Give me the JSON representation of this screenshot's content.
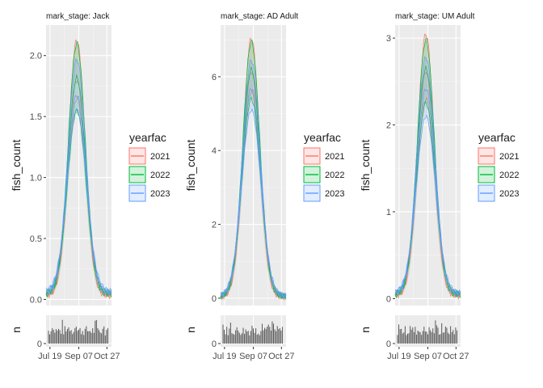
{
  "figure": {
    "legend_title": "yearfac",
    "ylabel": "fish_count",
    "rug_label": "n"
  },
  "chart_data": [
    {
      "type": "area",
      "title": "mark_stage: Jack",
      "xlabel": "",
      "ylabel": "fish_count",
      "x_ticks": [
        "Jul 19",
        "Sep 07",
        "Oct 27"
      ],
      "y_ticks": [
        "0.0",
        "0.5",
        "1.0",
        "1.5",
        "2.0"
      ],
      "ylim": [
        -0.05,
        2.25
      ],
      "rug_ticks": [
        "0"
      ],
      "series": [
        {
          "name": "2021",
          "color": "#F8766D",
          "peak": 2.13,
          "band_low": 1.8,
          "band_high": 2.13,
          "lines": [
            2.13,
            1.8,
            1.65
          ]
        },
        {
          "name": "2022",
          "color": "#00BA38",
          "peak": 2.1,
          "band_low": 1.55,
          "band_high": 2.1,
          "lines": [
            2.1,
            1.82,
            1.55
          ]
        },
        {
          "name": "2023",
          "color": "#619CFF",
          "peak": 1.97,
          "band_low": 1.55,
          "band_high": 1.97,
          "lines": [
            1.97,
            1.68,
            1.55
          ]
        }
      ],
      "grid": true,
      "legend": "right"
    },
    {
      "type": "area",
      "title": "mark_stage: AD Adult",
      "xlabel": "",
      "ylabel": "fish_count",
      "x_ticks": [
        "Jul 19",
        "Sep 07",
        "Oct 27"
      ],
      "y_ticks": [
        "0",
        "2",
        "4",
        "6"
      ],
      "ylim": [
        -0.2,
        7.4
      ],
      "rug_ticks": [
        "0"
      ],
      "series": [
        {
          "name": "2021",
          "color": "#F8766D",
          "peak": 7.05,
          "band_low": 5.6,
          "band_high": 7.05,
          "lines": [
            7.05,
            6.15,
            5.6
          ]
        },
        {
          "name": "2022",
          "color": "#00BA38",
          "peak": 6.95,
          "band_low": 5.4,
          "band_high": 6.95,
          "lines": [
            6.95,
            6.2,
            5.4
          ]
        },
        {
          "name": "2023",
          "color": "#619CFF",
          "peak": 6.45,
          "band_low": 5.1,
          "band_high": 6.45,
          "lines": [
            6.45,
            5.7,
            5.1
          ]
        }
      ],
      "grid": true,
      "legend": "right"
    },
    {
      "type": "area",
      "title": "mark_stage: UM Adult",
      "xlabel": "",
      "ylabel": "fish_count",
      "x_ticks": [
        "Jul 19",
        "Sep 07",
        "Oct 27"
      ],
      "y_ticks": [
        "0",
        "1",
        "2",
        "3"
      ],
      "ylim": [
        -0.08,
        3.15
      ],
      "rug_ticks": [
        "0"
      ],
      "series": [
        {
          "name": "2021",
          "color": "#F8766D",
          "peak": 3.05,
          "band_low": 2.3,
          "band_high": 3.05,
          "lines": [
            3.05,
            2.62,
            2.3
          ]
        },
        {
          "name": "2022",
          "color": "#00BA38",
          "peak": 2.98,
          "band_low": 2.25,
          "band_high": 2.98,
          "lines": [
            2.98,
            2.65,
            2.25
          ]
        },
        {
          "name": "2023",
          "color": "#619CFF",
          "peak": 2.78,
          "band_low": 2.1,
          "band_high": 2.78,
          "lines": [
            2.78,
            2.42,
            2.1
          ]
        }
      ],
      "grid": true,
      "legend": "right"
    }
  ]
}
